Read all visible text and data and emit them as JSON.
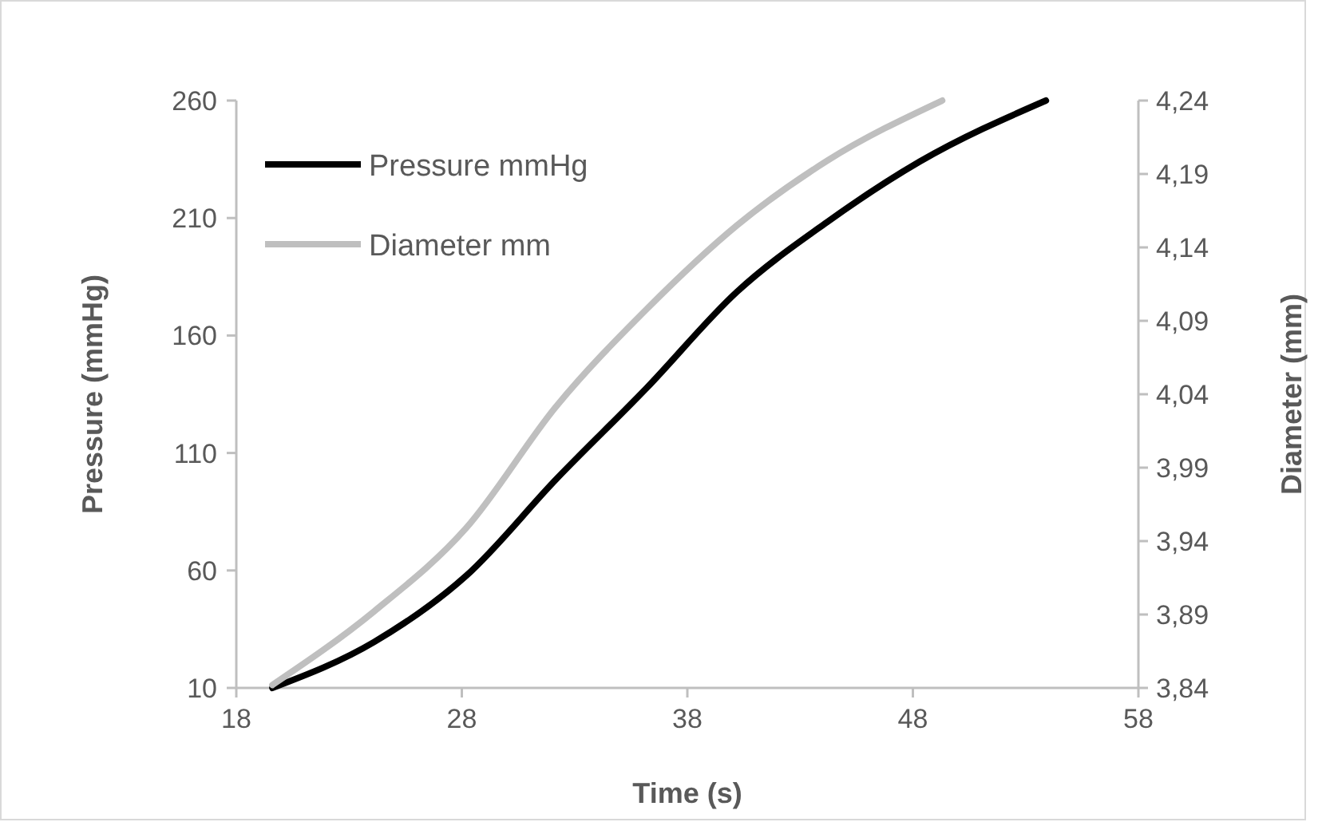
{
  "chart_data": {
    "type": "line",
    "xlabel": "Time (s)",
    "ylabel": "Pressure (mmHg)",
    "y2label": "Diameter (mm)",
    "xlim": [
      18,
      58
    ],
    "xticks": [
      18,
      28,
      38,
      48,
      58
    ],
    "ylim": [
      10,
      260
    ],
    "yticks": [
      10,
      60,
      110,
      160,
      210,
      260
    ],
    "y2lim": [
      3.84,
      4.24
    ],
    "y2ticks": [
      {
        "value": 3.84,
        "label": "3,84"
      },
      {
        "value": 3.89,
        "label": "3,89"
      },
      {
        "value": 3.94,
        "label": "3,94"
      },
      {
        "value": 3.99,
        "label": "3,99"
      },
      {
        "value": 4.04,
        "label": "4,04"
      },
      {
        "value": 4.09,
        "label": "4,09"
      },
      {
        "value": 4.14,
        "label": "4,14"
      },
      {
        "value": 4.19,
        "label": "4,19"
      },
      {
        "value": 4.24,
        "label": "4,24"
      }
    ],
    "grid": false,
    "legend": "top left",
    "marker": "none",
    "line_style": "solid",
    "series": [
      {
        "name": "Pressure mmHg",
        "color": "#000000",
        "x": [
          19.6,
          24.1,
          28.2,
          32.2,
          36.2,
          40.2,
          44.2,
          48.3,
          53.9
        ],
        "values": [
          10,
          29.5,
          57.8,
          99,
          137.7,
          178.6,
          208.3,
          234,
          260
        ]
      },
      {
        "name": "Diameter mm",
        "color": "#bfbfbf",
        "axis": "y2",
        "x": [
          19.6,
          24.1,
          28.2,
          32.2,
          36.2,
          40.2,
          44.2,
          49.3
        ],
        "values": [
          3.842,
          3.892,
          3.949,
          4.032,
          4.098,
          4.155,
          4.199,
          4.24
        ]
      }
    ]
  }
}
